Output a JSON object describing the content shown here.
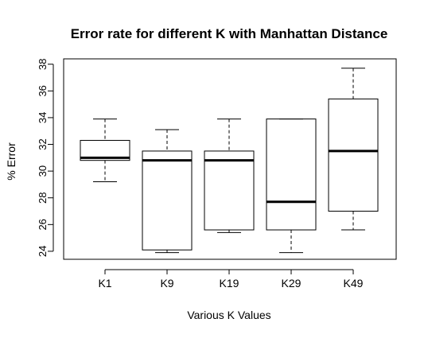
{
  "chart_data": {
    "type": "boxplot",
    "title": "Error rate for different K with Manhattan Distance",
    "xlabel": "Various K Values",
    "ylabel": "% Error",
    "ylim": [
      23.4,
      38.4
    ],
    "yticks": [
      24,
      26,
      28,
      30,
      32,
      34,
      36,
      38
    ],
    "categories": [
      "K1",
      "K9",
      "K19",
      "K29",
      "K49"
    ],
    "boxes": [
      {
        "label": "K1",
        "min": 29.2,
        "q1": 30.8,
        "median": 31.0,
        "q3": 32.3,
        "max": 33.9
      },
      {
        "label": "K9",
        "min": 23.9,
        "q1": 24.1,
        "median": 30.8,
        "q3": 31.5,
        "max": 33.1
      },
      {
        "label": "K19",
        "min": 25.4,
        "q1": 25.6,
        "median": 30.8,
        "q3": 31.5,
        "max": 33.9
      },
      {
        "label": "K29",
        "min": 23.9,
        "q1": 25.6,
        "median": 27.7,
        "q3": 33.9,
        "max": 33.9
      },
      {
        "label": "K49",
        "min": 25.6,
        "q1": 27.0,
        "median": 31.5,
        "q3": 35.4,
        "max": 37.7
      }
    ],
    "grid": false,
    "legend": "none"
  }
}
